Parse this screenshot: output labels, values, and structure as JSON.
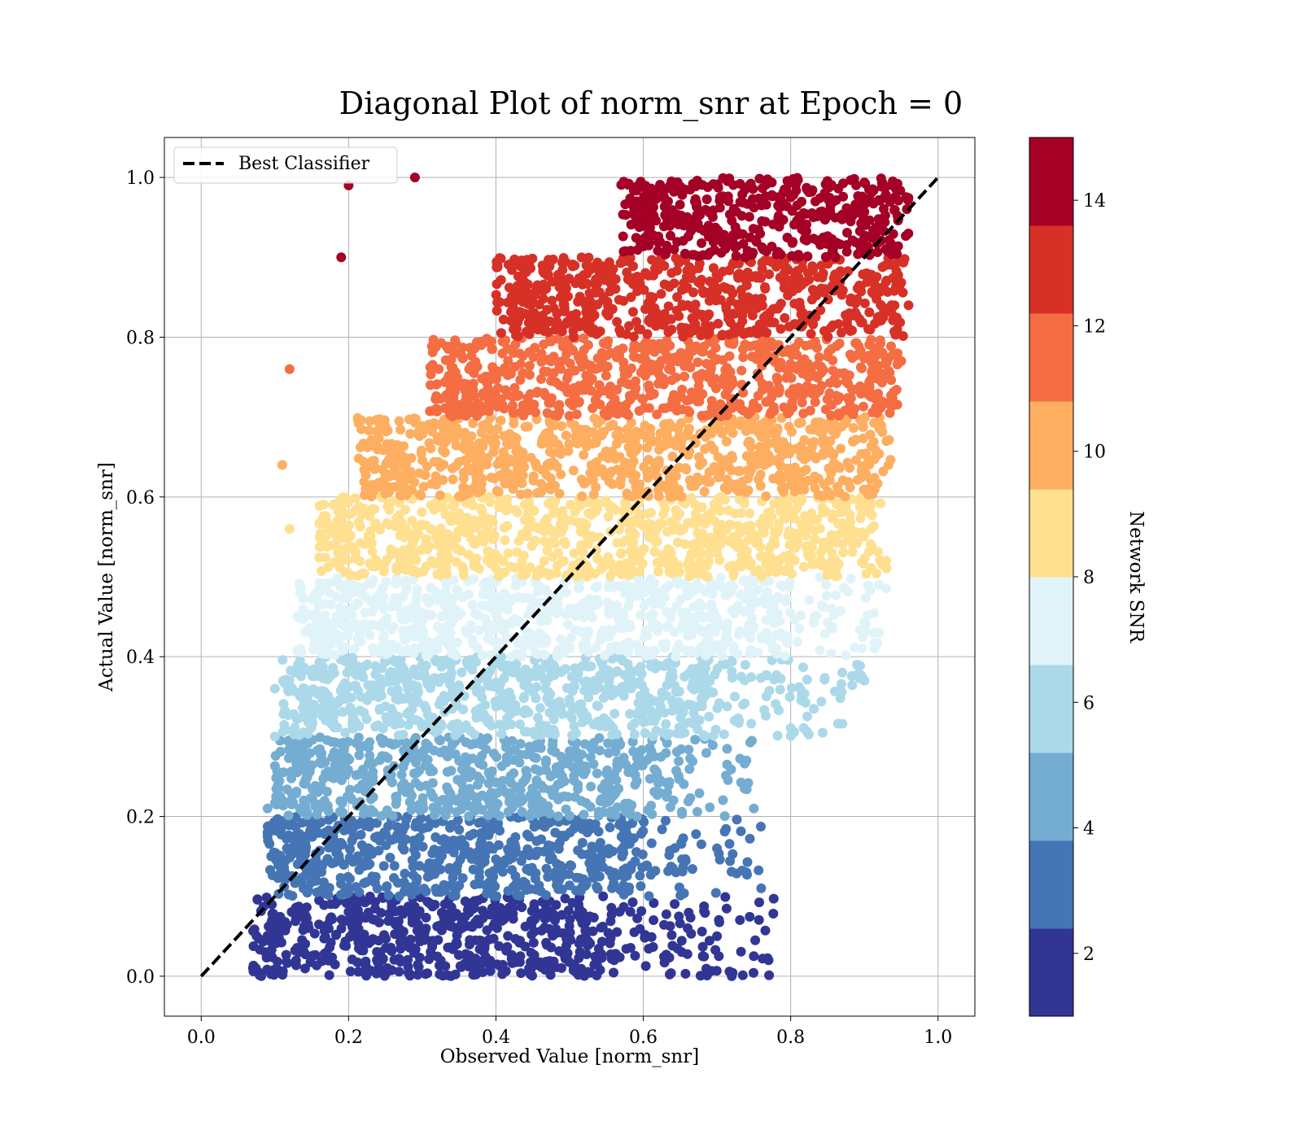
{
  "chart_data": {
    "type": "scatter",
    "title": "Diagonal Plot of norm_snr at Epoch = 0",
    "xlabel": "Observed Value [norm_snr]",
    "ylabel": "Actual Value [norm_snr]",
    "xlim": [
      -0.05,
      1.05
    ],
    "ylim": [
      -0.05,
      1.05
    ],
    "xticks": [
      "0.0",
      "0.2",
      "0.4",
      "0.6",
      "0.8",
      "1.0"
    ],
    "yticks": [
      "0.0",
      "0.2",
      "0.4",
      "0.6",
      "0.8",
      "1.0"
    ],
    "grid": true,
    "legend": {
      "placement": "upper-left",
      "entries": [
        "Best Classifier"
      ]
    },
    "reference_line": {
      "name": "Best Classifier",
      "style": "dashed",
      "color": "#000000",
      "points": [
        [
          0,
          0
        ],
        [
          1,
          1
        ]
      ]
    },
    "colorbar": {
      "label": "Network SNR",
      "range": [
        1,
        15
      ],
      "ticks": [
        "2",
        "4",
        "6",
        "8",
        "10",
        "12",
        "14"
      ],
      "colors": [
        "#313695",
        "#4575b4",
        "#74add1",
        "#abd9e9",
        "#e0f3f8",
        "#fee090",
        "#fdae61",
        "#f46d43",
        "#d73027",
        "#a50026"
      ]
    },
    "bands": [
      {
        "y_range": [
          0.0,
          0.1
        ],
        "x_range": [
          0.09,
          0.52
        ],
        "tail_x_max": 0.78,
        "color": "#313695"
      },
      {
        "y_range": [
          0.1,
          0.2
        ],
        "x_range": [
          0.11,
          0.57
        ],
        "tail_x_max": 0.76,
        "color": "#4575b4"
      },
      {
        "y_range": [
          0.2,
          0.3
        ],
        "x_range": [
          0.12,
          0.61
        ],
        "tail_x_max": 0.75,
        "color": "#74add1"
      },
      {
        "y_range": [
          0.3,
          0.4
        ],
        "x_range": [
          0.13,
          0.68
        ],
        "tail_x_max": 0.9,
        "color": "#abd9e9"
      },
      {
        "y_range": [
          0.4,
          0.5
        ],
        "x_range": [
          0.15,
          0.78
        ],
        "tail_x_max": 0.93,
        "color": "#e0f3f8"
      },
      {
        "y_range": [
          0.5,
          0.6
        ],
        "x_range": [
          0.18,
          0.91
        ],
        "tail_x_max": 0.93,
        "color": "#fee090"
      },
      {
        "y_range": [
          0.6,
          0.7
        ],
        "x_range": [
          0.23,
          0.92
        ],
        "tail_x_max": 0.94,
        "color": "#fdae61"
      },
      {
        "y_range": [
          0.7,
          0.8
        ],
        "x_range": [
          0.33,
          0.94
        ],
        "tail_x_max": 0.95,
        "color": "#f46d43"
      },
      {
        "y_range": [
          0.8,
          0.9
        ],
        "x_range": [
          0.42,
          0.95
        ],
        "tail_x_max": 0.96,
        "color": "#d73027"
      },
      {
        "y_range": [
          0.9,
          1.0
        ],
        "x_range": [
          0.59,
          0.96
        ],
        "tail_x_max": 0.96,
        "color": "#a50026"
      }
    ],
    "scattered_points": [
      {
        "x": 0.12,
        "y": 0.76,
        "color": "#f46d43"
      },
      {
        "x": 0.19,
        "y": 0.9,
        "color": "#a50026"
      },
      {
        "x": 0.2,
        "y": 0.99,
        "color": "#a50026"
      },
      {
        "x": 0.29,
        "y": 1.0,
        "color": "#a50026"
      },
      {
        "x": 0.11,
        "y": 0.64,
        "color": "#fdae61"
      },
      {
        "x": 0.12,
        "y": 0.56,
        "color": "#fee090"
      },
      {
        "x": 0.1,
        "y": 0.36,
        "color": "#abd9e9"
      },
      {
        "x": 0.1,
        "y": 0.3,
        "color": "#abd9e9"
      },
      {
        "x": 0.09,
        "y": 0.21,
        "color": "#74add1"
      },
      {
        "x": 0.09,
        "y": 0.18,
        "color": "#4575b4"
      },
      {
        "x": 0.77,
        "y": 0.02,
        "color": "#313695"
      },
      {
        "x": 0.72,
        "y": 0.0,
        "color": "#313695"
      },
      {
        "x": 0.7,
        "y": 0.05,
        "color": "#313695"
      },
      {
        "x": 0.76,
        "y": 0.11,
        "color": "#4575b4"
      },
      {
        "x": 0.74,
        "y": 0.13,
        "color": "#4575b4"
      },
      {
        "x": 0.7,
        "y": 0.16,
        "color": "#4575b4"
      },
      {
        "x": 0.75,
        "y": 0.21,
        "color": "#74add1"
      },
      {
        "x": 0.74,
        "y": 0.27,
        "color": "#74add1"
      },
      {
        "x": 0.9,
        "y": 0.37,
        "color": "#abd9e9"
      },
      {
        "x": 0.89,
        "y": 0.39,
        "color": "#abd9e9"
      },
      {
        "x": 0.87,
        "y": 0.38,
        "color": "#abd9e9"
      },
      {
        "x": 0.92,
        "y": 0.43,
        "color": "#e0f3f8"
      },
      {
        "x": 0.92,
        "y": 0.49,
        "color": "#e0f3f8"
      },
      {
        "x": 0.93,
        "y": 0.52,
        "color": "#fee090"
      },
      {
        "x": 0.93,
        "y": 0.67,
        "color": "#fdae61"
      },
      {
        "x": 0.95,
        "y": 0.77,
        "color": "#f46d43"
      },
      {
        "x": 0.96,
        "y": 0.84,
        "color": "#d73027"
      }
    ]
  }
}
